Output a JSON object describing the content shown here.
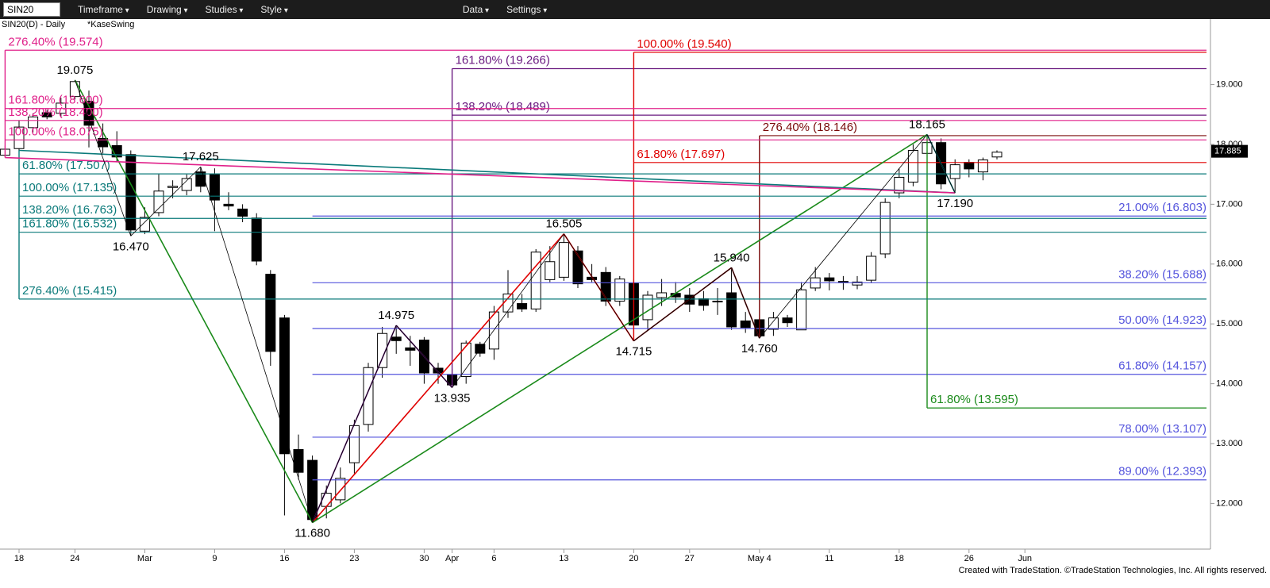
{
  "toolbar": {
    "symbol": "SIN20",
    "items": [
      "Timeframe",
      "Drawing",
      "Studies",
      "Style",
      "Data",
      "Settings"
    ]
  },
  "footer": "Created with TradeStation. ©TradeStation Technologies, Inc. All rights reserved.",
  "chart_data": {
    "type": "candlestick",
    "title": "SIN20(D) - Daily",
    "study": "*KaseSwing",
    "categories": [
      null,
      "18",
      null,
      null,
      null,
      "24",
      null,
      null,
      null,
      null,
      "Mar",
      null,
      null,
      null,
      null,
      "9",
      null,
      null,
      null,
      null,
      "16",
      null,
      null,
      null,
      null,
      "23",
      null,
      null,
      null,
      null,
      "30",
      null,
      "Apr",
      null,
      null,
      "6",
      null,
      null,
      null,
      null,
      "13",
      null,
      null,
      null,
      null,
      "20",
      null,
      null,
      null,
      "27",
      null,
      null,
      null,
      null,
      "May 4",
      null,
      null,
      null,
      null,
      "11",
      null,
      null,
      null,
      null,
      "18",
      null,
      null,
      null,
      null,
      "26",
      null,
      null,
      null,
      "Jun"
    ],
    "open": [
      17.82,
      17.93,
      18.28,
      18.53,
      18.52,
      18.8,
      18.72,
      18.1,
      17.98,
      17.83,
      16.55,
      16.86,
      17.28,
      17.23,
      17.54,
      17.5,
      17.0,
      16.92,
      16.77,
      15.83,
      15.1,
      12.9,
      12.72,
      11.95,
      12.06,
      12.68,
      13.32,
      14.27,
      14.78,
      14.6,
      14.73,
      14.26,
      14.15,
      14.12,
      14.66,
      14.58,
      15.2,
      15.34,
      15.25,
      15.74,
      15.78,
      16.22,
      15.78,
      15.86,
      15.38,
      15.68,
      15.07,
      15.44,
      15.51,
      15.48,
      15.42,
      15.38,
      15.52,
      15.05,
      15.07,
      14.91,
      15.1,
      14.9,
      15.6,
      15.77,
      15.7,
      15.65,
      15.73,
      16.17,
      17.19,
      17.37,
      17.85,
      18.03,
      17.43,
      17.7,
      17.54,
      17.79,
      null,
      null
    ],
    "high": [
      17.98,
      18.4,
      18.52,
      18.58,
      18.78,
      19.075,
      18.9,
      18.35,
      18.22,
      17.9,
      16.95,
      17.5,
      17.4,
      17.5,
      17.625,
      17.6,
      17.2,
      17.0,
      16.85,
      15.9,
      15.15,
      13.15,
      12.8,
      12.3,
      12.6,
      13.4,
      14.35,
      14.95,
      14.975,
      14.8,
      14.78,
      14.35,
      14.25,
      14.72,
      14.7,
      15.3,
      15.9,
      15.5,
      16.25,
      16.3,
      16.505,
      16.3,
      16.0,
      15.95,
      15.8,
      15.75,
      15.55,
      15.75,
      15.7,
      15.6,
      15.55,
      15.6,
      15.94,
      15.2,
      15.1,
      15.2,
      15.15,
      15.7,
      15.95,
      15.85,
      15.8,
      15.8,
      16.2,
      17.1,
      17.6,
      18.0,
      18.165,
      18.1,
      17.75,
      17.75,
      17.78,
      17.9,
      null,
      null
    ],
    "low": [
      17.78,
      17.9,
      18.2,
      18.42,
      18.45,
      18.75,
      17.95,
      17.85,
      17.7,
      16.47,
      16.5,
      16.8,
      17.1,
      17.15,
      17.2,
      16.55,
      16.9,
      16.7,
      15.98,
      14.3,
      11.8,
      12.4,
      11.68,
      11.75,
      12.0,
      12.5,
      13.2,
      14.1,
      14.5,
      14.3,
      14.0,
      14.0,
      13.935,
      14.0,
      14.45,
      14.4,
      15.1,
      15.2,
      15.2,
      15.7,
      15.72,
      15.6,
      15.7,
      15.3,
      15.3,
      14.715,
      14.9,
      15.3,
      15.35,
      15.2,
      15.22,
      15.15,
      14.9,
      14.85,
      14.76,
      14.8,
      14.95,
      14.92,
      15.55,
      15.56,
      15.57,
      15.58,
      15.68,
      16.1,
      17.1,
      17.3,
      17.75,
      17.25,
      17.19,
      17.45,
      17.4,
      17.75,
      null,
      null
    ],
    "close": [
      17.92,
      18.29,
      18.46,
      18.46,
      18.69,
      19.05,
      18.32,
      17.96,
      17.79,
      16.57,
      16.78,
      17.22,
      17.3,
      17.43,
      17.3,
      17.07,
      16.97,
      16.8,
      16.05,
      14.54,
      12.83,
      12.52,
      11.73,
      12.17,
      12.42,
      13.3,
      14.27,
      14.84,
      14.72,
      14.56,
      14.18,
      14.18,
      13.98,
      14.68,
      14.51,
      15.2,
      15.5,
      15.25,
      16.2,
      16.04,
      16.36,
      15.67,
      15.74,
      15.38,
      15.75,
      14.98,
      15.48,
      15.52,
      15.45,
      15.33,
      15.31,
      15.37,
      14.95,
      14.94,
      14.8,
      15.1,
      15.02,
      15.57,
      15.77,
      15.72,
      15.71,
      15.7,
      16.13,
      17.03,
      17.45,
      17.9,
      18.03,
      17.34,
      17.66,
      17.59,
      17.74,
      17.87,
      null,
      null
    ],
    "ylim": [
      11.236,
      20.095
    ],
    "yticks": [
      {
        "value": 12,
        "label": "12.000"
      },
      {
        "value": 13,
        "label": "13.000"
      },
      {
        "value": 14,
        "label": "14.000"
      },
      {
        "value": 15,
        "label": "15.000"
      },
      {
        "value": 16,
        "label": "16.000"
      },
      {
        "value": 17,
        "label": "17.000"
      },
      {
        "value": 18,
        "label": "18.000"
      },
      {
        "value": 19,
        "label": "19.000"
      }
    ],
    "last_price": 17.885,
    "swings": [
      {
        "value": 19.075,
        "label": "19.075"
      },
      {
        "value": 16.47,
        "label": "16.470"
      },
      {
        "value": 17.625,
        "label": "17.625"
      },
      {
        "value": 11.68,
        "label": "11.680"
      },
      {
        "value": 14.975,
        "label": "14.975"
      },
      {
        "value": 13.935,
        "label": "13.935"
      },
      {
        "value": 16.505,
        "label": "16.505"
      },
      {
        "value": 14.715,
        "label": "14.715"
      },
      {
        "value": 15.94,
        "label": "15.940"
      },
      {
        "value": 14.76,
        "label": "14.760"
      },
      {
        "value": 18.165,
        "label": "18.165"
      },
      {
        "value": 17.19,
        "label": "17.190"
      }
    ],
    "fib_sets": [
      {
        "color": "#5555dd",
        "points": [
          11.68
        ],
        "labels": "right",
        "levels": [
          {
            "value": 16.803,
            "label": "21.00% (16.803)"
          },
          {
            "value": 15.688,
            "label": "38.20% (15.688)"
          },
          {
            "value": 14.923,
            "label": "50.00% (14.923)"
          },
          {
            "value": 14.157,
            "label": "61.80% (14.157)"
          },
          {
            "value": 13.107,
            "label": "78.00% (13.107)"
          },
          {
            "value": 12.393,
            "label": "89.00% (12.393)"
          }
        ]
      },
      {
        "color": "#6a1a80",
        "points": [
          11.68,
          14.975,
          13.935
        ],
        "labels": "left",
        "levels": [
          {
            "value": 19.266,
            "label": "161.80% (19.266)"
          },
          {
            "value": 18.489,
            "label": "138.20% (18.489)"
          }
        ]
      },
      {
        "color": "#e00000",
        "points": [
          11.68,
          16.505,
          14.715
        ],
        "labels": "left",
        "levels": [
          {
            "value": 19.54,
            "label": "100.00% (19.540)"
          },
          {
            "value": 17.697,
            "label": "61.80% (17.697)"
          }
        ]
      },
      {
        "color": "#7a0a0a",
        "points": [
          14.715,
          15.94,
          14.76
        ],
        "labels": "left",
        "levels": [
          {
            "value": 18.146,
            "label": "276.40% (18.146)"
          }
        ]
      },
      {
        "color": "#1a8a1a",
        "points": [
          19.075,
          11.68,
          18.165
        ],
        "labels": "left",
        "levels": [
          {
            "value": 13.595,
            "label": "61.80% (13.595)"
          }
        ]
      },
      {
        "color": "#0a7a7a",
        "points": [
          18.165,
          17.19,
          17.9
        ],
        "labels": "left",
        "levels": [
          {
            "value": 17.507,
            "label": "61.80% (17.507)"
          },
          {
            "value": 17.135,
            "label": "100.00% (17.135)"
          },
          {
            "value": 16.763,
            "label": "138.20% (16.763)"
          },
          {
            "value": 16.532,
            "label": "161.80% (16.532)"
          },
          {
            "value": 15.415,
            "label": "276.40% (15.415)"
          }
        ]
      },
      {
        "color": "#e0208a",
        "points": [
          17.19,
          17.78
        ],
        "labels": "left",
        "levels": [
          {
            "value": 19.574,
            "label": "276.40% (19.574)"
          },
          {
            "value": 18.6,
            "label": "161.80% (18.600)"
          },
          {
            "value": 18.4,
            "label": "138.20% (18.400)"
          },
          {
            "value": 18.075,
            "label": "100.00% (18.075)"
          }
        ]
      }
    ]
  }
}
